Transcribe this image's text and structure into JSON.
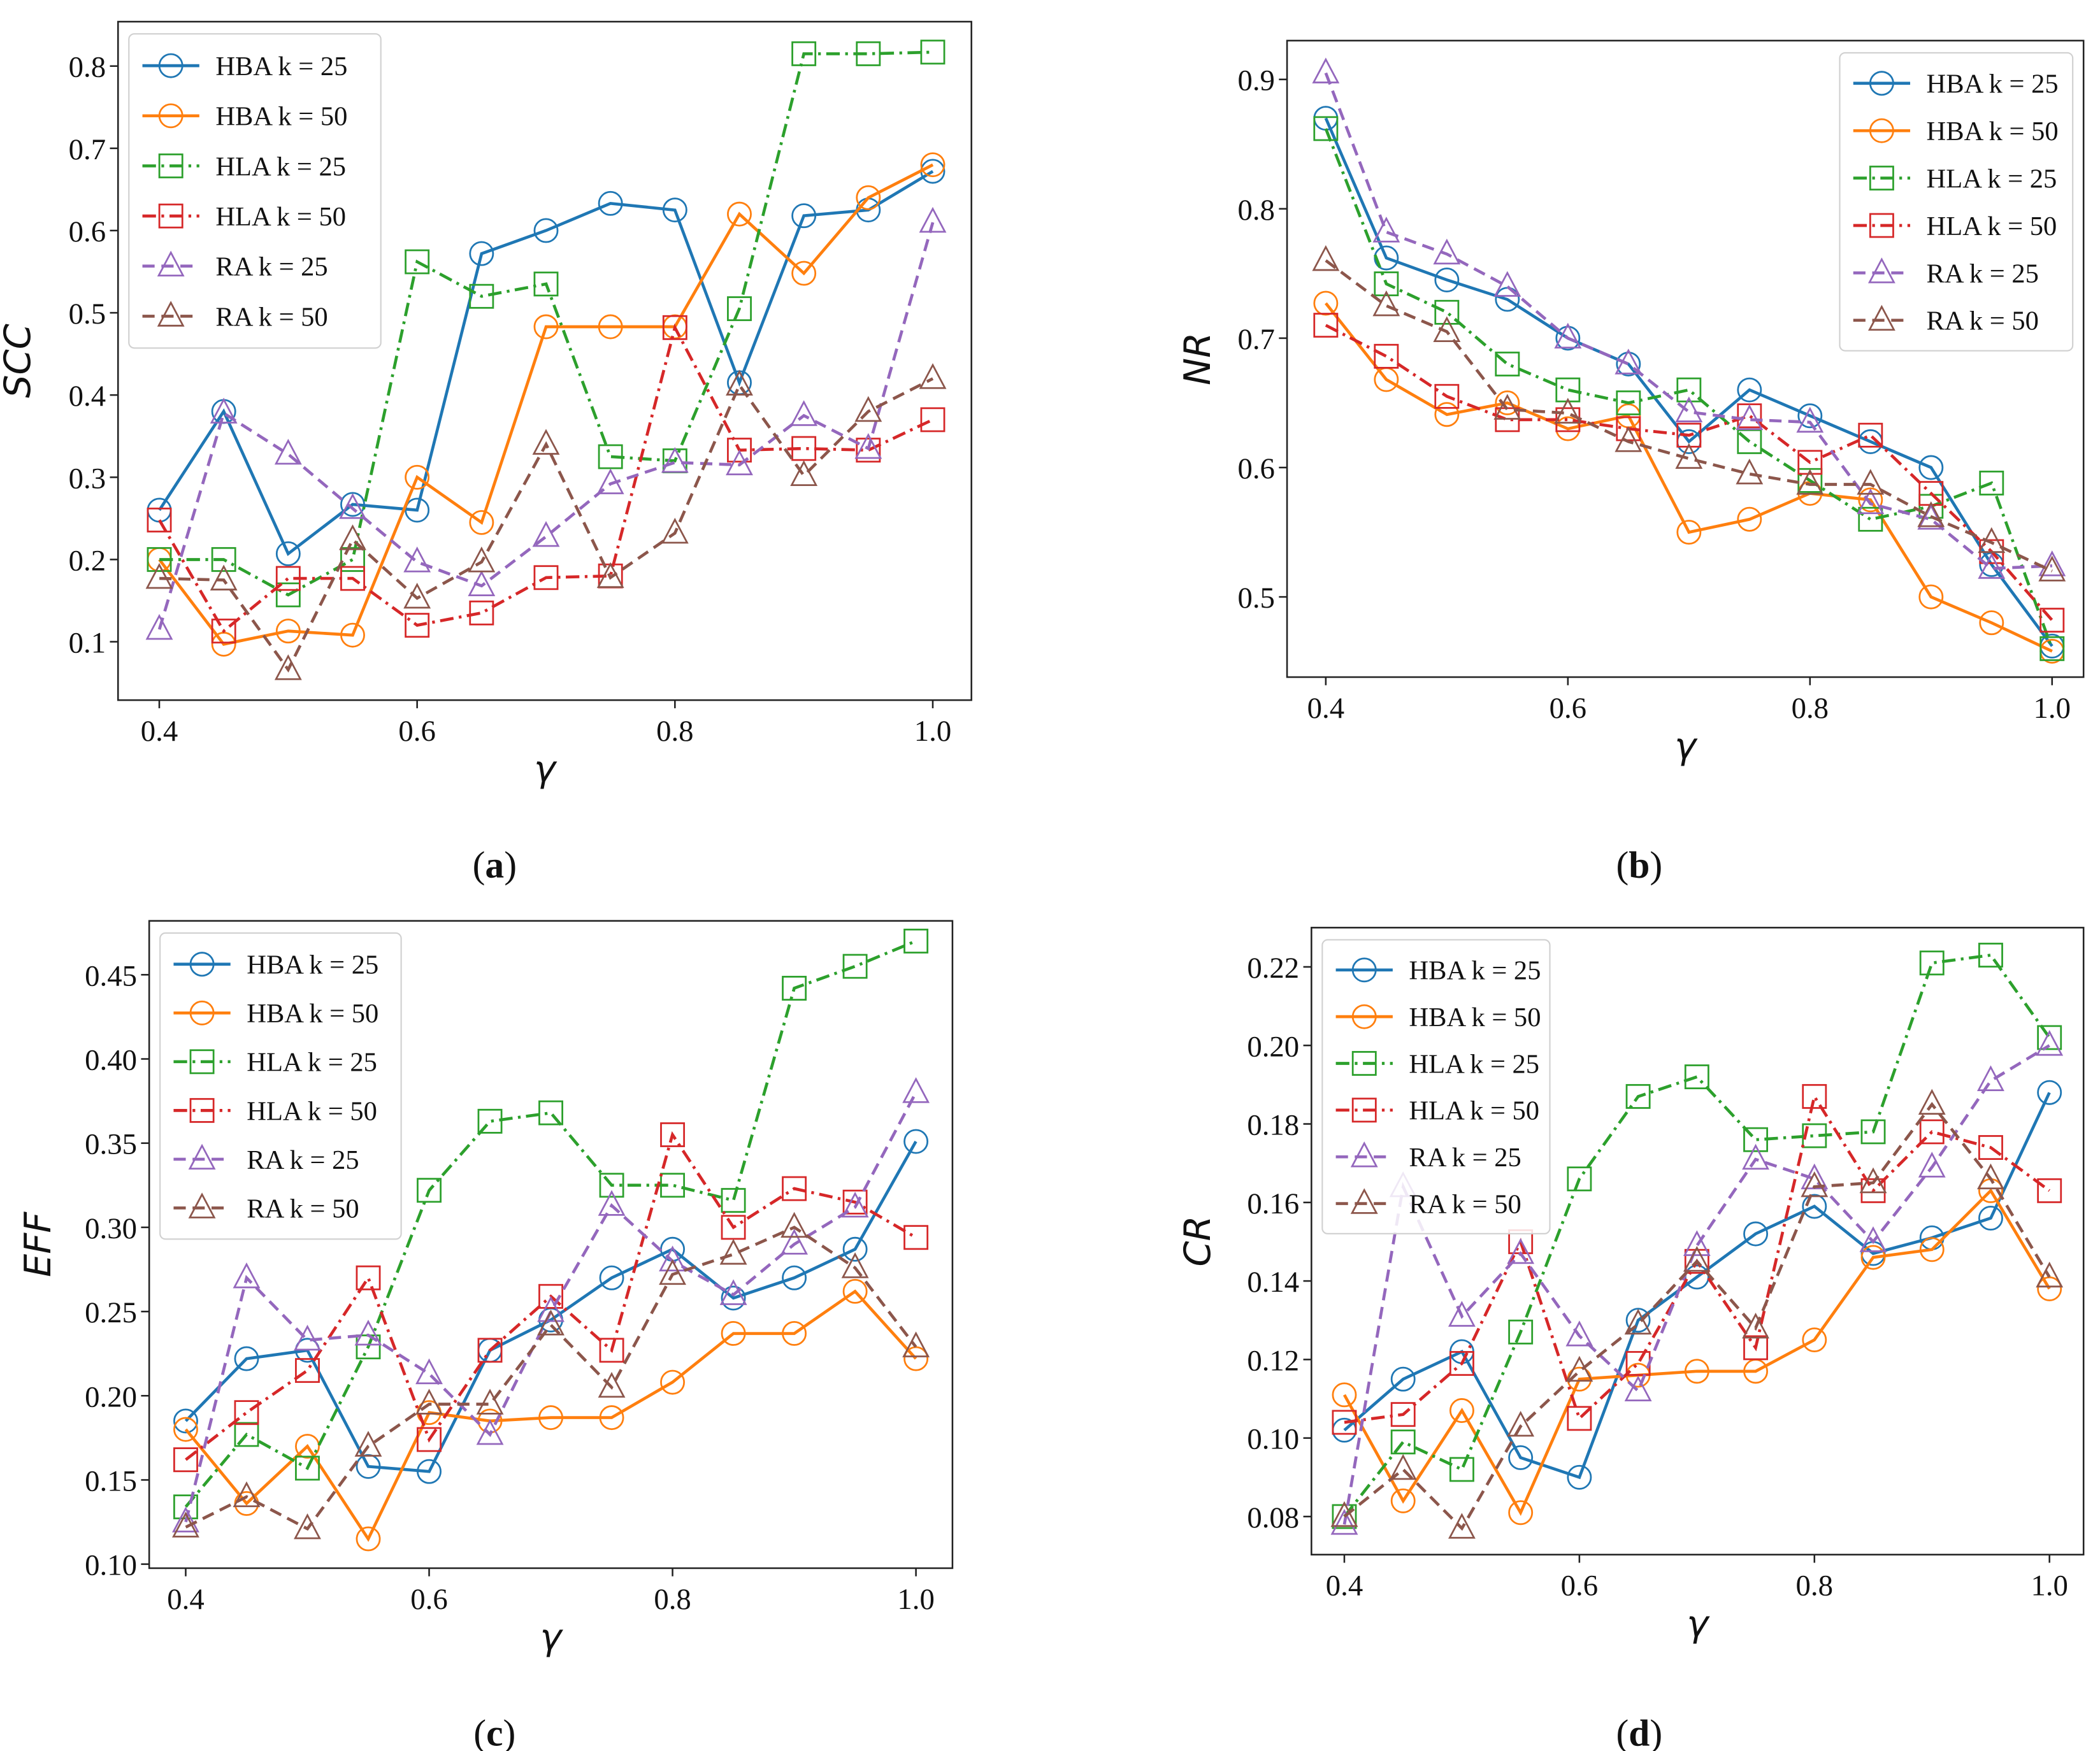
{
  "figure": {
    "panels": [
      {
        "caption_open": "(",
        "caption_letter": "a",
        "caption_close": ")"
      },
      {
        "caption_open": "(",
        "caption_letter": "b",
        "caption_close": ")"
      },
      {
        "caption_open": "(",
        "caption_letter": "c",
        "caption_close": ")"
      },
      {
        "caption_open": "(",
        "caption_letter": "d",
        "caption_close": ")"
      }
    ]
  },
  "chart_data": [
    {
      "type": "line",
      "title": "",
      "xlabel": "γ",
      "ylabel": "SCC",
      "x": [
        0.4,
        0.45,
        0.5,
        0.55,
        0.6,
        0.65,
        0.7,
        0.75,
        0.8,
        0.85,
        0.9,
        0.95,
        1.0
      ],
      "xlim": [
        0.368,
        1.03
      ],
      "ylim": [
        0.029,
        0.854
      ],
      "xticks": [
        {
          "v": 0.4,
          "label": "0.4"
        },
        {
          "v": 0.6,
          "label": "0.6"
        },
        {
          "v": 0.8,
          "label": "0.8"
        },
        {
          "v": 1.0,
          "label": "1.0"
        }
      ],
      "yticks": [
        {
          "v": 0.1,
          "label": "0.1"
        },
        {
          "v": 0.2,
          "label": "0.2"
        },
        {
          "v": 0.3,
          "label": "0.3"
        },
        {
          "v": 0.4,
          "label": "0.4"
        },
        {
          "v": 0.5,
          "label": "0.5"
        },
        {
          "v": 0.6,
          "label": "0.6"
        },
        {
          "v": 0.7,
          "label": "0.7"
        },
        {
          "v": 0.8,
          "label": "0.8"
        }
      ],
      "grid": false,
      "legend": "upper-left",
      "series": [
        {
          "name": "HBA k = 25",
          "color": "#1f77b4",
          "style": "solid",
          "marker": "circle",
          "values": [
            0.26,
            0.38,
            0.207,
            0.267,
            0.26,
            0.572,
            0.6,
            0.633,
            0.625,
            0.415,
            0.618,
            0.625,
            0.672
          ]
        },
        {
          "name": "HBA k = 50",
          "color": "#ff7f0e",
          "style": "solid",
          "marker": "circle",
          "values": [
            0.2,
            0.097,
            0.113,
            0.108,
            0.3,
            0.245,
            0.483,
            0.483,
            0.483,
            0.62,
            0.548,
            0.64,
            0.68
          ]
        },
        {
          "name": "HLA k = 25",
          "color": "#2ca02c",
          "style": "dashdot",
          "marker": "square",
          "values": [
            0.2,
            0.2,
            0.157,
            0.2,
            0.562,
            0.52,
            0.535,
            0.325,
            0.32,
            0.505,
            0.815,
            0.815,
            0.817
          ]
        },
        {
          "name": "HLA k = 50",
          "color": "#d62728",
          "style": "dashdot",
          "marker": "square",
          "values": [
            0.248,
            0.113,
            0.177,
            0.177,
            0.12,
            0.135,
            0.178,
            0.18,
            0.482,
            0.333,
            0.335,
            0.333,
            0.37
          ]
        },
        {
          "name": "RA k = 25",
          "color": "#9467bd",
          "style": "dashed",
          "marker": "triangle",
          "values": [
            0.115,
            0.378,
            0.328,
            0.262,
            0.197,
            0.168,
            0.228,
            0.292,
            0.318,
            0.315,
            0.375,
            0.335,
            0.61
          ]
        },
        {
          "name": "RA k = 50",
          "color": "#8c564b",
          "style": "dashed",
          "marker": "triangle",
          "values": [
            0.177,
            0.175,
            0.066,
            0.224,
            0.153,
            0.197,
            0.34,
            0.178,
            0.232,
            0.412,
            0.302,
            0.38,
            0.42
          ]
        }
      ]
    },
    {
      "type": "line",
      "title": "",
      "xlabel": "γ",
      "ylabel": "NR",
      "x": [
        0.4,
        0.45,
        0.5,
        0.55,
        0.6,
        0.65,
        0.7,
        0.75,
        0.8,
        0.85,
        0.9,
        0.95,
        1.0
      ],
      "xlim": [
        0.368,
        1.026
      ],
      "ylim": [
        0.438,
        0.93
      ],
      "xticks": [
        {
          "v": 0.4,
          "label": "0.4"
        },
        {
          "v": 0.6,
          "label": "0.6"
        },
        {
          "v": 0.8,
          "label": "0.8"
        },
        {
          "v": 1.0,
          "label": "1.0"
        }
      ],
      "yticks": [
        {
          "v": 0.5,
          "label": "0.5"
        },
        {
          "v": 0.6,
          "label": "0.6"
        },
        {
          "v": 0.7,
          "label": "0.7"
        },
        {
          "v": 0.8,
          "label": "0.8"
        },
        {
          "v": 0.9,
          "label": "0.9"
        }
      ],
      "grid": false,
      "legend": "upper-right",
      "series": [
        {
          "name": "HBA k = 25",
          "color": "#1f77b4",
          "style": "solid",
          "marker": "circle",
          "values": [
            0.87,
            0.762,
            0.745,
            0.73,
            0.7,
            0.68,
            0.62,
            0.66,
            0.64,
            0.62,
            0.6,
            0.525,
            0.462
          ]
        },
        {
          "name": "HBA k = 50",
          "color": "#ff7f0e",
          "style": "solid",
          "marker": "circle",
          "values": [
            0.727,
            0.668,
            0.641,
            0.65,
            0.63,
            0.64,
            0.55,
            0.56,
            0.58,
            0.575,
            0.5,
            0.48,
            0.458
          ]
        },
        {
          "name": "HLA k = 25",
          "color": "#2ca02c",
          "style": "dashdot",
          "marker": "square",
          "values": [
            0.862,
            0.742,
            0.72,
            0.68,
            0.66,
            0.65,
            0.66,
            0.62,
            0.59,
            0.56,
            0.57,
            0.588,
            0.46
          ]
        },
        {
          "name": "HLA k = 50",
          "color": "#d62728",
          "style": "dashdot",
          "marker": "square",
          "values": [
            0.71,
            0.686,
            0.655,
            0.637,
            0.637,
            0.63,
            0.625,
            0.64,
            0.604,
            0.625,
            0.58,
            0.535,
            0.482
          ]
        },
        {
          "name": "RA k = 25",
          "color": "#9467bd",
          "style": "dashed",
          "marker": "triangle",
          "values": [
            0.905,
            0.782,
            0.765,
            0.74,
            0.7,
            0.68,
            0.643,
            0.637,
            0.635,
            0.572,
            0.56,
            0.522,
            0.524
          ]
        },
        {
          "name": "RA k = 50",
          "color": "#8c564b",
          "style": "dashed",
          "marker": "triangle",
          "values": [
            0.76,
            0.725,
            0.705,
            0.645,
            0.642,
            0.62,
            0.607,
            0.595,
            0.587,
            0.587,
            0.562,
            0.542,
            0.52
          ]
        }
      ]
    },
    {
      "type": "line",
      "title": "",
      "xlabel": "γ",
      "ylabel": "EFF",
      "x": [
        0.4,
        0.45,
        0.5,
        0.55,
        0.6,
        0.65,
        0.7,
        0.75,
        0.8,
        0.85,
        0.9,
        0.95,
        1.0
      ],
      "xlim": [
        0.37,
        1.03
      ],
      "ylim": [
        0.0976,
        0.482
      ],
      "xticks": [
        {
          "v": 0.4,
          "label": "0.4"
        },
        {
          "v": 0.6,
          "label": "0.6"
        },
        {
          "v": 0.8,
          "label": "0.8"
        },
        {
          "v": 1.0,
          "label": "1.0"
        }
      ],
      "yticks": [
        {
          "v": 0.1,
          "label": "0.10"
        },
        {
          "v": 0.15,
          "label": "0.15"
        },
        {
          "v": 0.2,
          "label": "0.20"
        },
        {
          "v": 0.25,
          "label": "0.25"
        },
        {
          "v": 0.3,
          "label": "0.30"
        },
        {
          "v": 0.35,
          "label": "0.35"
        },
        {
          "v": 0.4,
          "label": "0.40"
        },
        {
          "v": 0.45,
          "label": "0.45"
        }
      ],
      "grid": false,
      "legend": "upper-left",
      "series": [
        {
          "name": "HBA k = 25",
          "color": "#1f77b4",
          "style": "solid",
          "marker": "circle",
          "values": [
            0.185,
            0.222,
            0.227,
            0.158,
            0.155,
            0.227,
            0.245,
            0.27,
            0.287,
            0.258,
            0.27,
            0.287,
            0.351
          ]
        },
        {
          "name": "HBA k = 50",
          "color": "#ff7f0e",
          "style": "solid",
          "marker": "circle",
          "values": [
            0.18,
            0.136,
            0.17,
            0.115,
            0.19,
            0.185,
            0.187,
            0.187,
            0.208,
            0.237,
            0.237,
            0.262,
            0.222
          ]
        },
        {
          "name": "HLA k = 25",
          "color": "#2ca02c",
          "style": "dashdot",
          "marker": "square",
          "values": [
            0.134,
            0.177,
            0.157,
            0.229,
            0.322,
            0.363,
            0.368,
            0.325,
            0.325,
            0.316,
            0.442,
            0.455,
            0.47
          ]
        },
        {
          "name": "HLA k = 50",
          "color": "#d62728",
          "style": "dashdot",
          "marker": "square",
          "values": [
            0.162,
            0.19,
            0.215,
            0.27,
            0.174,
            0.227,
            0.259,
            0.227,
            0.355,
            0.3,
            0.323,
            0.315,
            0.294
          ]
        },
        {
          "name": "RA k = 25",
          "color": "#9467bd",
          "style": "dashed",
          "marker": "triangle",
          "values": [
            0.125,
            0.27,
            0.233,
            0.236,
            0.213,
            0.177,
            0.25,
            0.313,
            0.28,
            0.26,
            0.29,
            0.312,
            0.38
          ]
        },
        {
          "name": "RA k = 50",
          "color": "#8c564b",
          "style": "dashed",
          "marker": "triangle",
          "values": [
            0.122,
            0.14,
            0.121,
            0.17,
            0.195,
            0.195,
            0.242,
            0.205,
            0.272,
            0.284,
            0.3,
            0.276,
            0.229
          ]
        }
      ]
    },
    {
      "type": "line",
      "title": "",
      "xlabel": "γ",
      "ylabel": "CR",
      "x": [
        0.4,
        0.45,
        0.5,
        0.55,
        0.6,
        0.65,
        0.7,
        0.75,
        0.8,
        0.85,
        0.9,
        0.95,
        1.0
      ],
      "xlim": [
        0.372,
        1.029
      ],
      "ylim": [
        0.0703,
        0.23
      ],
      "xticks": [
        {
          "v": 0.4,
          "label": "0.4"
        },
        {
          "v": 0.6,
          "label": "0.6"
        },
        {
          "v": 0.8,
          "label": "0.8"
        },
        {
          "v": 1.0,
          "label": "1.0"
        }
      ],
      "yticks": [
        {
          "v": 0.08,
          "label": "0.08"
        },
        {
          "v": 0.1,
          "label": "0.10"
        },
        {
          "v": 0.12,
          "label": "0.12"
        },
        {
          "v": 0.14,
          "label": "0.14"
        },
        {
          "v": 0.16,
          "label": "0.16"
        },
        {
          "v": 0.18,
          "label": "0.18"
        },
        {
          "v": 0.2,
          "label": "0.20"
        },
        {
          "v": 0.22,
          "label": "0.22"
        }
      ],
      "grid": false,
      "legend": "upper-left",
      "series": [
        {
          "name": "HBA k = 25",
          "color": "#1f77b4",
          "style": "solid",
          "marker": "circle",
          "values": [
            0.102,
            0.115,
            0.122,
            0.095,
            0.09,
            0.13,
            0.141,
            0.152,
            0.159,
            0.147,
            0.151,
            0.156,
            0.188
          ]
        },
        {
          "name": "HBA k = 50",
          "color": "#ff7f0e",
          "style": "solid",
          "marker": "circle",
          "values": [
            0.111,
            0.084,
            0.107,
            0.081,
            0.115,
            0.116,
            0.117,
            0.117,
            0.125,
            0.146,
            0.148,
            0.163,
            0.138
          ]
        },
        {
          "name": "HLA k = 25",
          "color": "#2ca02c",
          "style": "dashdot",
          "marker": "square",
          "values": [
            0.08,
            0.099,
            0.092,
            0.127,
            0.166,
            0.187,
            0.192,
            0.176,
            0.177,
            0.178,
            0.221,
            0.223,
            0.202
          ]
        },
        {
          "name": "HLA k = 50",
          "color": "#d62728",
          "style": "dashdot",
          "marker": "square",
          "values": [
            0.104,
            0.106,
            0.119,
            0.15,
            0.105,
            0.119,
            0.145,
            0.123,
            0.187,
            0.163,
            0.178,
            0.174,
            0.163
          ]
        },
        {
          "name": "RA k = 25",
          "color": "#9467bd",
          "style": "dashed",
          "marker": "triangle",
          "values": [
            0.078,
            0.164,
            0.131,
            0.147,
            0.126,
            0.112,
            0.149,
            0.171,
            0.166,
            0.15,
            0.169,
            0.191,
            0.2
          ]
        },
        {
          "name": "RA k = 50",
          "color": "#8c564b",
          "style": "dashed",
          "marker": "triangle",
          "values": [
            0.08,
            0.092,
            0.077,
            0.103,
            0.117,
            0.129,
            0.145,
            0.128,
            0.164,
            0.165,
            0.185,
            0.166,
            0.141
          ]
        }
      ]
    }
  ]
}
